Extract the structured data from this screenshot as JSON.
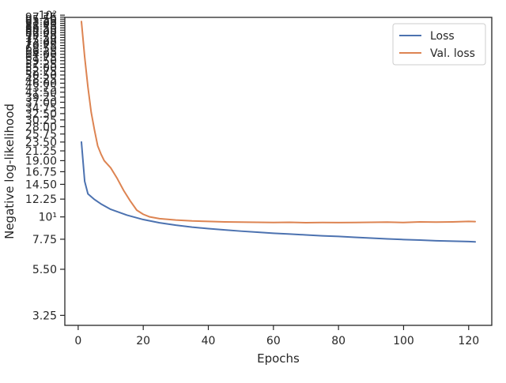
{
  "chart_data": {
    "type": "line",
    "title": "",
    "xlabel": "Epochs",
    "ylabel": "Negative log-likelihood",
    "xlim": [
      -4.1,
      127.1
    ],
    "ylim": [
      2.9,
      97.5
    ],
    "yscale": "log",
    "grid": false,
    "legend_position": "top-right",
    "x_ticks": [
      0,
      20,
      40,
      60,
      80,
      100,
      120
    ],
    "y_ticks": [
      {
        "value": 3.25,
        "label": "3.25"
      },
      {
        "value": 5.5,
        "label": "5.50"
      },
      {
        "value": 7.75,
        "label": "7.75"
      },
      {
        "value": 10,
        "label": "10¹"
      },
      {
        "value": 12.25,
        "label": "12.25"
      },
      {
        "value": 14.5,
        "label": "14.50"
      },
      {
        "value": 16.75,
        "label": "16.75"
      },
      {
        "value": 19.0,
        "label": "19.00"
      },
      {
        "value": 21.25,
        "label": "21.25"
      },
      {
        "value": 23.5,
        "label": "23.50"
      },
      {
        "value": 25.75,
        "label": "25.75"
      },
      {
        "value": 28.0,
        "label": "28.00"
      },
      {
        "value": 30.25,
        "label": "30.25"
      },
      {
        "value": 32.5,
        "label": "32.50"
      },
      {
        "value": 34.75,
        "label": "34.75"
      },
      {
        "value": 37.0,
        "label": "37.00"
      },
      {
        "value": 39.25,
        "label": "39.25"
      },
      {
        "value": 41.5,
        "label": "41.50"
      },
      {
        "value": 43.75,
        "label": "43.75"
      },
      {
        "value": 46.0,
        "label": "46.00"
      },
      {
        "value": 48.25,
        "label": "48.25"
      },
      {
        "value": 50.5,
        "label": "50.50"
      },
      {
        "value": 52.75,
        "label": "52.75"
      },
      {
        "value": 55.0,
        "label": "55.00"
      },
      {
        "value": 57.25,
        "label": "57.25"
      },
      {
        "value": 59.5,
        "label": "59.50"
      },
      {
        "value": 61.75,
        "label": "61.75"
      },
      {
        "value": 64.0,
        "label": "64.00"
      },
      {
        "value": 66.25,
        "label": "66.25"
      },
      {
        "value": 68.5,
        "label": "68.50"
      },
      {
        "value": 70.75,
        "label": "70.75"
      },
      {
        "value": 73.0,
        "label": "73.00"
      },
      {
        "value": 75.25,
        "label": "75.25"
      },
      {
        "value": 77.5,
        "label": "77.50"
      },
      {
        "value": 79.75,
        "label": "79.75"
      },
      {
        "value": 82.0,
        "label": "82.00"
      },
      {
        "value": 84.25,
        "label": "84.25"
      },
      {
        "value": 86.5,
        "label": "86.50"
      },
      {
        "value": 88.75,
        "label": "88.75"
      },
      {
        "value": 91.0,
        "label": "91.00"
      },
      {
        "value": 93.25,
        "label": "93.25"
      },
      {
        "value": 95.5,
        "label": "95.50"
      },
      {
        "value": 97.75,
        "label": "97.75"
      },
      {
        "value": 100,
        "label": "10²"
      }
    ],
    "series": [
      {
        "name": "Loss",
        "color": "#4c72b0",
        "x": [
          1,
          2,
          3,
          5,
          7,
          10,
          15,
          20,
          25,
          30,
          35,
          40,
          45,
          50,
          55,
          60,
          65,
          70,
          75,
          80,
          85,
          90,
          95,
          100,
          105,
          110,
          115,
          120,
          122
        ],
        "y": [
          23.5,
          15.0,
          13.0,
          12.2,
          11.6,
          10.9,
          10.2,
          9.7,
          9.35,
          9.1,
          8.9,
          8.75,
          8.62,
          8.5,
          8.4,
          8.3,
          8.22,
          8.14,
          8.06,
          8.0,
          7.92,
          7.85,
          7.78,
          7.72,
          7.68,
          7.62,
          7.58,
          7.55,
          7.52
        ]
      },
      {
        "name": "Val. loss",
        "color": "#dd8452",
        "x": [
          1,
          2,
          3,
          4,
          5,
          6,
          7,
          8,
          10,
          12,
          14,
          16,
          18,
          20,
          22,
          25,
          30,
          35,
          40,
          45,
          50,
          55,
          60,
          65,
          70,
          75,
          80,
          85,
          90,
          95,
          100,
          105,
          110,
          115,
          120,
          122
        ],
        "y": [
          93.0,
          62.0,
          44.0,
          33.0,
          27.0,
          22.5,
          20.5,
          19.0,
          17.5,
          15.5,
          13.5,
          12.0,
          10.8,
          10.3,
          10.0,
          9.8,
          9.65,
          9.55,
          9.5,
          9.45,
          9.42,
          9.4,
          9.38,
          9.4,
          9.36,
          9.38,
          9.37,
          9.38,
          9.4,
          9.42,
          9.38,
          9.45,
          9.42,
          9.45,
          9.5,
          9.48
        ]
      }
    ]
  }
}
